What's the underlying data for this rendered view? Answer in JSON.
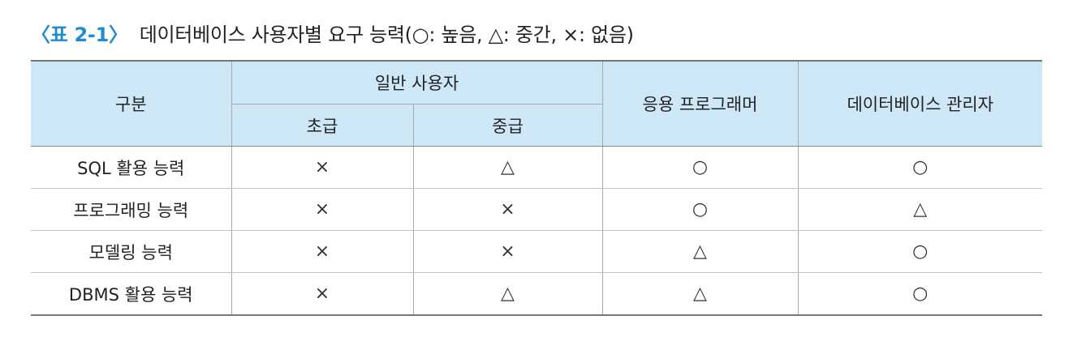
{
  "caption": {
    "label": "〈표 2-1〉",
    "text": "데이터베이스 사용자별 요구 능력(○: 높음, △: 중간, ×: 없음)"
  },
  "table": {
    "header": {
      "category": "구분",
      "general_user": "일반 사용자",
      "beginner": "초급",
      "intermediate": "중급",
      "app_programmer": "응용 프로그래머",
      "dba": "데이터베이스 관리자"
    },
    "rows": [
      {
        "label": "SQL 활용 능력",
        "beginner": "×",
        "intermediate": "△",
        "programmer": "○",
        "dba": "○"
      },
      {
        "label": "프로그래밍 능력",
        "beginner": "×",
        "intermediate": "×",
        "programmer": "○",
        "dba": "△"
      },
      {
        "label": "모델링 능력",
        "beginner": "×",
        "intermediate": "×",
        "programmer": "△",
        "dba": "○"
      },
      {
        "label": "DBMS 활용 능력",
        "beginner": "×",
        "intermediate": "△",
        "programmer": "△",
        "dba": "○"
      }
    ]
  },
  "colors": {
    "caption_label": "#1f8ccf",
    "header_background": "#cfe8f8"
  }
}
